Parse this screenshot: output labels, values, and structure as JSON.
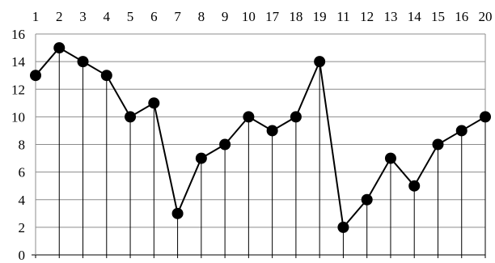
{
  "chart_data": {
    "type": "line",
    "title": "",
    "xlabel": "",
    "ylabel": "",
    "categories": [
      "1",
      "2",
      "3",
      "4",
      "5",
      "6",
      "7",
      "8",
      "9",
      "10",
      "17",
      "18",
      "19",
      "11",
      "12",
      "13",
      "14",
      "15",
      "16",
      "20"
    ],
    "series": [
      {
        "values": [
          13,
          15,
          14,
          13,
          10,
          11,
          3,
          7,
          8,
          10,
          9,
          10,
          14,
          2,
          4,
          7,
          5,
          8,
          9,
          10
        ]
      }
    ],
    "ylim": [
      0,
      16
    ],
    "yticks": [
      0,
      2,
      4,
      6,
      8,
      10,
      12,
      14,
      16
    ],
    "x_tick_position": "top",
    "grid": true,
    "drop_lines": true,
    "markers": "filled-circle",
    "colors": {
      "series": "#000000",
      "grid": "#8c8c8c"
    }
  }
}
